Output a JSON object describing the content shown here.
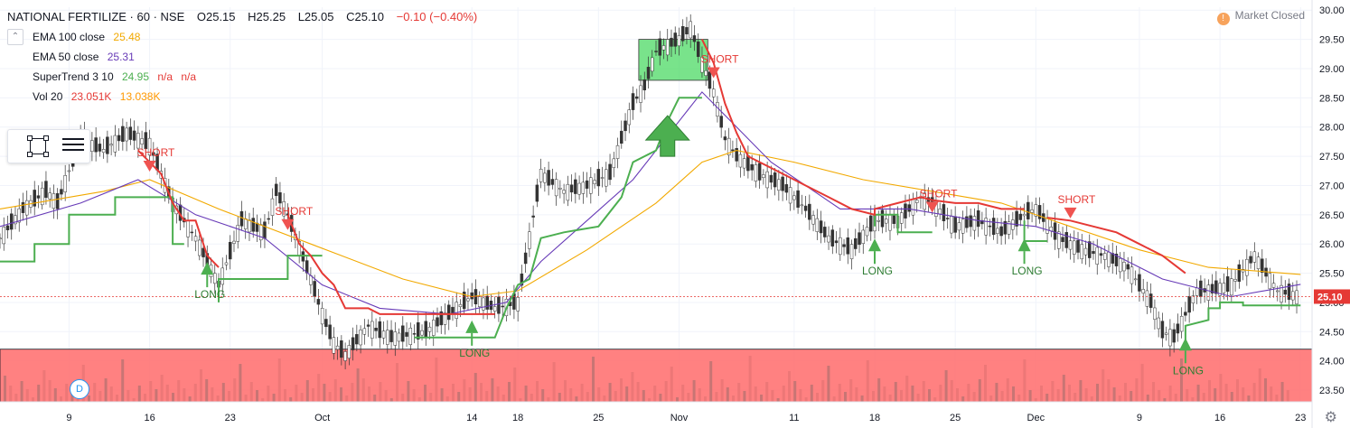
{
  "header": {
    "symbol": "NATIONAL FERTILIZE · 60 · NSE",
    "open": "O25.15",
    "high": "H25.25",
    "low": "L25.05",
    "close": "C25.10",
    "change": "−0.10 (−0.40%)"
  },
  "indicators": [
    {
      "label": "EMA 100 close",
      "values": [
        "25.48"
      ],
      "colors": [
        "#f2a900"
      ]
    },
    {
      "label": "EMA 50 close",
      "values": [
        "25.31"
      ],
      "colors": [
        "#673ab7"
      ]
    },
    {
      "label": "SuperTrend 3 10",
      "values": [
        "24.95",
        "n/a",
        "n/a"
      ],
      "colors": [
        "#4caf50",
        "#e53935",
        "#e53935"
      ]
    },
    {
      "label": "Vol 20",
      "values": [
        "23.051K",
        "13.038K"
      ],
      "colors": [
        "#e53935",
        "#ff9800"
      ]
    }
  ],
  "market_status": "Market Closed",
  "status_icon": "alert-icon",
  "badge": "D",
  "toolbar_icons": [
    "rectangle-tool-icon",
    "lines-tool-icon"
  ],
  "settings_icon": "gear-icon",
  "chart_data": {
    "type": "line",
    "y_ticks": [
      "30.00",
      "29.50",
      "29.00",
      "28.50",
      "28.00",
      "27.50",
      "27.00",
      "26.50",
      "26.00",
      "25.50",
      "25.00",
      "24.50",
      "24.00",
      "23.50"
    ],
    "ylim": [
      23.3,
      30.05
    ],
    "x_ticks": [
      {
        "label": "9",
        "x": 9
      },
      {
        "label": "16",
        "x": 16
      },
      {
        "label": "23",
        "x": 23
      },
      {
        "label": "Oct",
        "x": 31
      },
      {
        "label": "14",
        "x": 44
      },
      {
        "label": "18",
        "x": 48
      },
      {
        "label": "25",
        "x": 55
      },
      {
        "label": "Nov",
        "x": 62
      },
      {
        "label": "11",
        "x": 72
      },
      {
        "label": "18",
        "x": 79
      },
      {
        "label": "25",
        "x": 86
      },
      {
        "label": "Dec",
        "x": 93
      },
      {
        "label": "9",
        "x": 102
      },
      {
        "label": "16",
        "x": 109
      },
      {
        "label": "23",
        "x": 116
      }
    ],
    "xlim": [
      3,
      117
    ],
    "last_price": "25.10",
    "close": [
      [
        3,
        26.1
      ],
      [
        5,
        26.6
      ],
      [
        7,
        26.9
      ],
      [
        8,
        26.7
      ],
      [
        10,
        27.8
      ],
      [
        12,
        27.6
      ],
      [
        14,
        27.9
      ],
      [
        16,
        27.7
      ],
      [
        18,
        26.7
      ],
      [
        20,
        26.1
      ],
      [
        22,
        25.3
      ],
      [
        24,
        26.4
      ],
      [
        26,
        26.2
      ],
      [
        27,
        26.9
      ],
      [
        28,
        26.5
      ],
      [
        30,
        25.4
      ],
      [
        31,
        24.8
      ],
      [
        32,
        24.3
      ],
      [
        33,
        24.1
      ],
      [
        35,
        24.6
      ],
      [
        37,
        24.4
      ],
      [
        40,
        24.5
      ],
      [
        42,
        24.8
      ],
      [
        44,
        25.1
      ],
      [
        46,
        24.9
      ],
      [
        48,
        25.0
      ],
      [
        49,
        26.1
      ],
      [
        50,
        27.2
      ],
      [
        52,
        26.9
      ],
      [
        54,
        27.0
      ],
      [
        56,
        27.2
      ],
      [
        58,
        28.4
      ],
      [
        59,
        28.7
      ],
      [
        60,
        29.3
      ],
      [
        62,
        29.5
      ],
      [
        63,
        29.7
      ],
      [
        64,
        29.1
      ],
      [
        65,
        28.6
      ],
      [
        66,
        27.8
      ],
      [
        67,
        27.5
      ],
      [
        69,
        27.2
      ],
      [
        71,
        27.0
      ],
      [
        73,
        26.6
      ],
      [
        75,
        26.1
      ],
      [
        77,
        25.9
      ],
      [
        79,
        26.4
      ],
      [
        81,
        26.4
      ],
      [
        83,
        26.8
      ],
      [
        84,
        26.7
      ],
      [
        86,
        26.3
      ],
      [
        88,
        26.4
      ],
      [
        90,
        26.2
      ],
      [
        92,
        26.5
      ],
      [
        93,
        26.6
      ],
      [
        95,
        26.1
      ],
      [
        97,
        25.9
      ],
      [
        99,
        25.8
      ],
      [
        101,
        25.6
      ],
      [
        103,
        25.0
      ],
      [
        104,
        24.5
      ],
      [
        105,
        24.4
      ],
      [
        106,
        24.8
      ],
      [
        107,
        25.2
      ],
      [
        108,
        25.2
      ],
      [
        110,
        25.3
      ],
      [
        112,
        25.8
      ],
      [
        114,
        25.2
      ],
      [
        116,
        25.1
      ]
    ],
    "series": [
      {
        "name": "EMA 100 close",
        "color": "#f2a900",
        "points": [
          [
            3,
            26.6
          ],
          [
            12,
            26.9
          ],
          [
            16,
            27.1
          ],
          [
            22,
            26.6
          ],
          [
            30,
            26.0
          ],
          [
            38,
            25.4
          ],
          [
            44,
            25.1
          ],
          [
            48,
            25.2
          ],
          [
            54,
            25.9
          ],
          [
            60,
            26.7
          ],
          [
            64,
            27.4
          ],
          [
            67,
            27.6
          ],
          [
            72,
            27.4
          ],
          [
            78,
            27.1
          ],
          [
            84,
            26.9
          ],
          [
            90,
            26.7
          ],
          [
            96,
            26.3
          ],
          [
            102,
            25.9
          ],
          [
            108,
            25.6
          ],
          [
            116,
            25.48
          ]
        ]
      },
      {
        "name": "EMA 50 close",
        "color": "#673ab7",
        "points": [
          [
            3,
            26.3
          ],
          [
            10,
            26.7
          ],
          [
            15,
            27.1
          ],
          [
            20,
            26.5
          ],
          [
            26,
            26.1
          ],
          [
            31,
            25.3
          ],
          [
            36,
            24.9
          ],
          [
            42,
            24.8
          ],
          [
            47,
            25.0
          ],
          [
            50,
            25.7
          ],
          [
            54,
            26.4
          ],
          [
            58,
            27.1
          ],
          [
            62,
            28.1
          ],
          [
            64,
            28.6
          ],
          [
            66,
            28.2
          ],
          [
            70,
            27.4
          ],
          [
            76,
            26.6
          ],
          [
            82,
            26.6
          ],
          [
            88,
            26.4
          ],
          [
            93,
            26.3
          ],
          [
            98,
            26.0
          ],
          [
            104,
            25.4
          ],
          [
            110,
            25.1
          ],
          [
            116,
            25.31
          ]
        ]
      },
      {
        "name": "SuperTrend up",
        "color": "#4caf50",
        "points": [
          [
            3,
            25.7
          ],
          [
            6,
            25.7
          ],
          [
            6,
            26.0
          ],
          [
            9,
            26.0
          ],
          [
            9,
            26.5
          ],
          [
            13,
            26.5
          ],
          [
            13,
            26.8
          ],
          [
            18,
            26.8
          ],
          [
            18,
            26.0
          ],
          [
            19,
            26.0
          ]
        ],
        "extra": [
          [
            [
              22,
              25.0
            ],
            [
              22,
              25.4
            ],
            [
              28,
              25.4
            ],
            [
              28,
              25.8
            ],
            [
              31,
              25.8
            ]
          ],
          [
            [
              39,
              24.4
            ],
            [
              46,
              24.4
            ],
            [
              47,
              24.9
            ],
            [
              48,
              25.3
            ],
            [
              49,
              25.4
            ],
            [
              50,
              26.1
            ],
            [
              52,
              26.2
            ],
            [
              55,
              26.3
            ],
            [
              57,
              26.8
            ],
            [
              58,
              27.4
            ],
            [
              60,
              27.6
            ],
            [
              61,
              28.1
            ],
            [
              62,
              28.5
            ],
            [
              64,
              28.5
            ]
          ],
          [
            [
              79,
              26.3
            ],
            [
              79,
              26.5
            ],
            [
              81,
              26.5
            ],
            [
              81,
              26.2
            ],
            [
              84,
              26.2
            ]
          ],
          [
            [
              92,
              26.4
            ],
            [
              92,
              26.05
            ],
            [
              94,
              26.05
            ]
          ],
          [
            [
              106,
              24.3
            ],
            [
              106,
              24.6
            ],
            [
              108,
              24.7
            ],
            [
              108,
              24.9
            ],
            [
              109,
              24.9
            ],
            [
              109,
              25.0
            ],
            [
              111,
              25.0
            ],
            [
              111,
              24.95
            ],
            [
              116,
              24.95
            ]
          ]
        ]
      },
      {
        "name": "SuperTrend down",
        "color": "#e53935",
        "points": [
          [
            15,
            27.6
          ],
          [
            16,
            27.4
          ],
          [
            17,
            27.2
          ],
          [
            18,
            26.7
          ],
          [
            19,
            26.4
          ],
          [
            20,
            26.4
          ],
          [
            21,
            25.8
          ],
          [
            22,
            25.6
          ]
        ],
        "extra": [
          [
            [
              28,
              26.5
            ],
            [
              29,
              26.0
            ],
            [
              30,
              25.8
            ],
            [
              31,
              25.5
            ],
            [
              32,
              25.3
            ],
            [
              33,
              24.9
            ],
            [
              35,
              24.9
            ],
            [
              36,
              24.8
            ],
            [
              38,
              24.8
            ],
            [
              42,
              24.8
            ],
            [
              46,
              24.8
            ]
          ],
          [
            [
              64,
              29.5
            ],
            [
              65,
              29.1
            ],
            [
              66,
              28.4
            ],
            [
              67,
              27.9
            ],
            [
              68,
              27.5
            ],
            [
              70,
              27.3
            ],
            [
              73,
              27.0
            ],
            [
              75,
              26.8
            ],
            [
              77,
              26.6
            ],
            [
              79,
              26.5
            ],
            [
              79,
              26.6
            ],
            [
              81,
              26.7
            ],
            [
              83,
              26.8
            ],
            [
              84,
              26.75
            ],
            [
              86,
              26.7
            ],
            [
              88,
              26.7
            ],
            [
              90,
              26.6
            ],
            [
              92,
              26.6
            ]
          ],
          [
            [
              94,
              26.45
            ],
            [
              96,
              26.4
            ],
            [
              98,
              26.3
            ],
            [
              100,
              26.2
            ],
            [
              102,
              26.0
            ],
            [
              104,
              25.8
            ],
            [
              106,
              25.5
            ]
          ]
        ]
      }
    ],
    "signals": [
      {
        "text": "SHORT",
        "x": 16,
        "y": 27.3,
        "side": "short"
      },
      {
        "text": "LONG",
        "x": 21,
        "y": 25.6,
        "side": "long"
      },
      {
        "text": "SHORT",
        "x": 28,
        "y": 26.3,
        "side": "short"
      },
      {
        "text": "LONG",
        "x": 44,
        "y": 24.6,
        "side": "long"
      },
      {
        "text": "SHORT",
        "x": 65,
        "y": 28.9,
        "side": "short"
      },
      {
        "text": "LONG",
        "x": 79,
        "y": 26.0,
        "side": "long"
      },
      {
        "text": "SHORT",
        "x": 84,
        "y": 26.6,
        "side": "short"
      },
      {
        "text": "LONG",
        "x": 92,
        "y": 26.0,
        "side": "long"
      },
      {
        "text": "SHORT",
        "x": 96,
        "y": 26.5,
        "side": "short"
      },
      {
        "text": "LONG",
        "x": 106,
        "y": 24.3,
        "side": "long"
      }
    ],
    "zones": [
      {
        "name": "green-box",
        "x0": 58.5,
        "x1": 64.5,
        "y0": 28.8,
        "y1": 29.5,
        "color": "#4cd964"
      },
      {
        "name": "red-band",
        "x0": 3,
        "x1": 117,
        "y0": 23.3,
        "y1": 24.2,
        "color": "#ff6b6b"
      }
    ],
    "big_arrow": {
      "x": 61,
      "y": 27.5
    },
    "grid": true
  }
}
